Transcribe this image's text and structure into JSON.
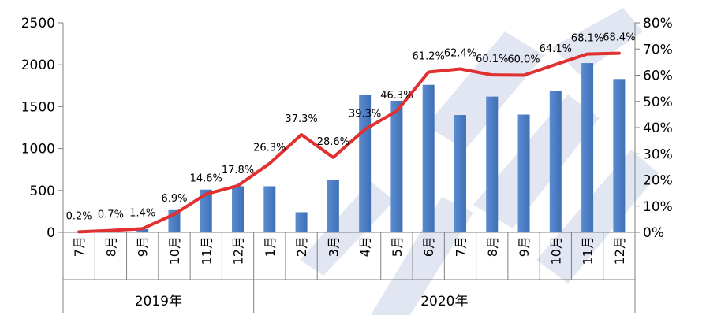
{
  "chart_data": {
    "type": "bar",
    "categories": [
      "7月",
      "8月",
      "9月",
      "10月",
      "11月",
      "12月",
      "1月",
      "2月",
      "3月",
      "4月",
      "5月",
      "6月",
      "7月",
      "8月",
      "9月",
      "10月",
      "11月",
      "12月"
    ],
    "groups": [
      {
        "label": "2019年",
        "count": 6
      },
      {
        "label": "2020年",
        "count": 12
      }
    ],
    "series": [
      {
        "type": "bar",
        "axis": "left",
        "values": [
          0,
          0,
          40,
          265,
          510,
          550,
          550,
          240,
          625,
          1640,
          1570,
          1760,
          1400,
          1620,
          1405,
          1685,
          2020,
          1830
        ]
      },
      {
        "type": "line",
        "axis": "right",
        "values": [
          0.2,
          0.7,
          1.4,
          6.9,
          14.6,
          17.8,
          26.3,
          37.3,
          28.6,
          39.3,
          46.3,
          61.2,
          62.4,
          60.1,
          60.0,
          64.1,
          68.1,
          68.4
        ],
        "labels": [
          "0.2%",
          "0.7%",
          "1.4%",
          "6.9%",
          "14.6%",
          "17.8%",
          "26.3%",
          "37.3%",
          "28.6%",
          "39.3%",
          "46.3%",
          "61.2%",
          "62.4%",
          "60.1%",
          "60.0%",
          "64.1%",
          "68.1%",
          "68.4%"
        ]
      }
    ],
    "y_left": {
      "min": 0,
      "max": 2500,
      "ticks": [
        "0",
        "500",
        "1000",
        "1500",
        "2000",
        "2500"
      ]
    },
    "y_right": {
      "min": 0,
      "max": 80,
      "ticks": [
        "0%",
        "10%",
        "20%",
        "30%",
        "40%",
        "50%",
        "60%",
        "70%",
        "80%"
      ]
    },
    "grid": false,
    "colors": {
      "bar": "#5B8BD0",
      "bar_dark": "#3F6FB5",
      "line": "#E03030",
      "axis": "#7f7f7f",
      "watermark": "#C9D3E8"
    },
    "watermark": "watermark-stamp-graphic"
  }
}
